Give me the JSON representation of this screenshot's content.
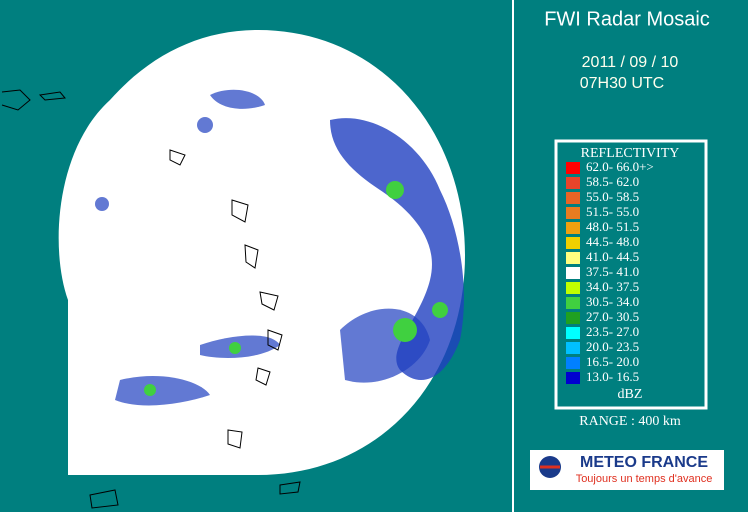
{
  "header": {
    "title": "FWI Radar Mosaic",
    "date": "2011 / 09 / 10",
    "time": "07H30 UTC"
  },
  "legend": {
    "title": "REFLECTIVITY",
    "unit": "dBZ",
    "entries": [
      {
        "label": "62.0- 66.0+>",
        "color": "#ff0000"
      },
      {
        "label": "58.5- 62.0",
        "color": "#e8442a"
      },
      {
        "label": "55.0- 58.5",
        "color": "#e86424"
      },
      {
        "label": "51.5- 55.0",
        "color": "#e87c20"
      },
      {
        "label": "48.0- 51.5",
        "color": "#f0a010"
      },
      {
        "label": "44.5- 48.0",
        "color": "#f0d000"
      },
      {
        "label": "41.0- 44.5",
        "color": "#ffff80"
      },
      {
        "label": "37.5- 41.0",
        "color": "#ffffff"
      },
      {
        "label": "34.0- 37.5",
        "color": "#c0ff00"
      },
      {
        "label": "30.5- 34.0",
        "color": "#40d040"
      },
      {
        "label": "27.0- 30.5",
        "color": "#20a020"
      },
      {
        "label": "23.5- 27.0",
        "color": "#00ffff"
      },
      {
        "label": "20.0- 23.5",
        "color": "#00c0ff"
      },
      {
        "label": "16.5- 20.0",
        "color": "#0080ff"
      },
      {
        "label": "13.0- 16.5",
        "color": "#0000d0"
      }
    ]
  },
  "range": "RANGE : 400 km",
  "logo": {
    "name": "METEO FRANCE",
    "slogan": "Toujours un temps d'avance"
  }
}
